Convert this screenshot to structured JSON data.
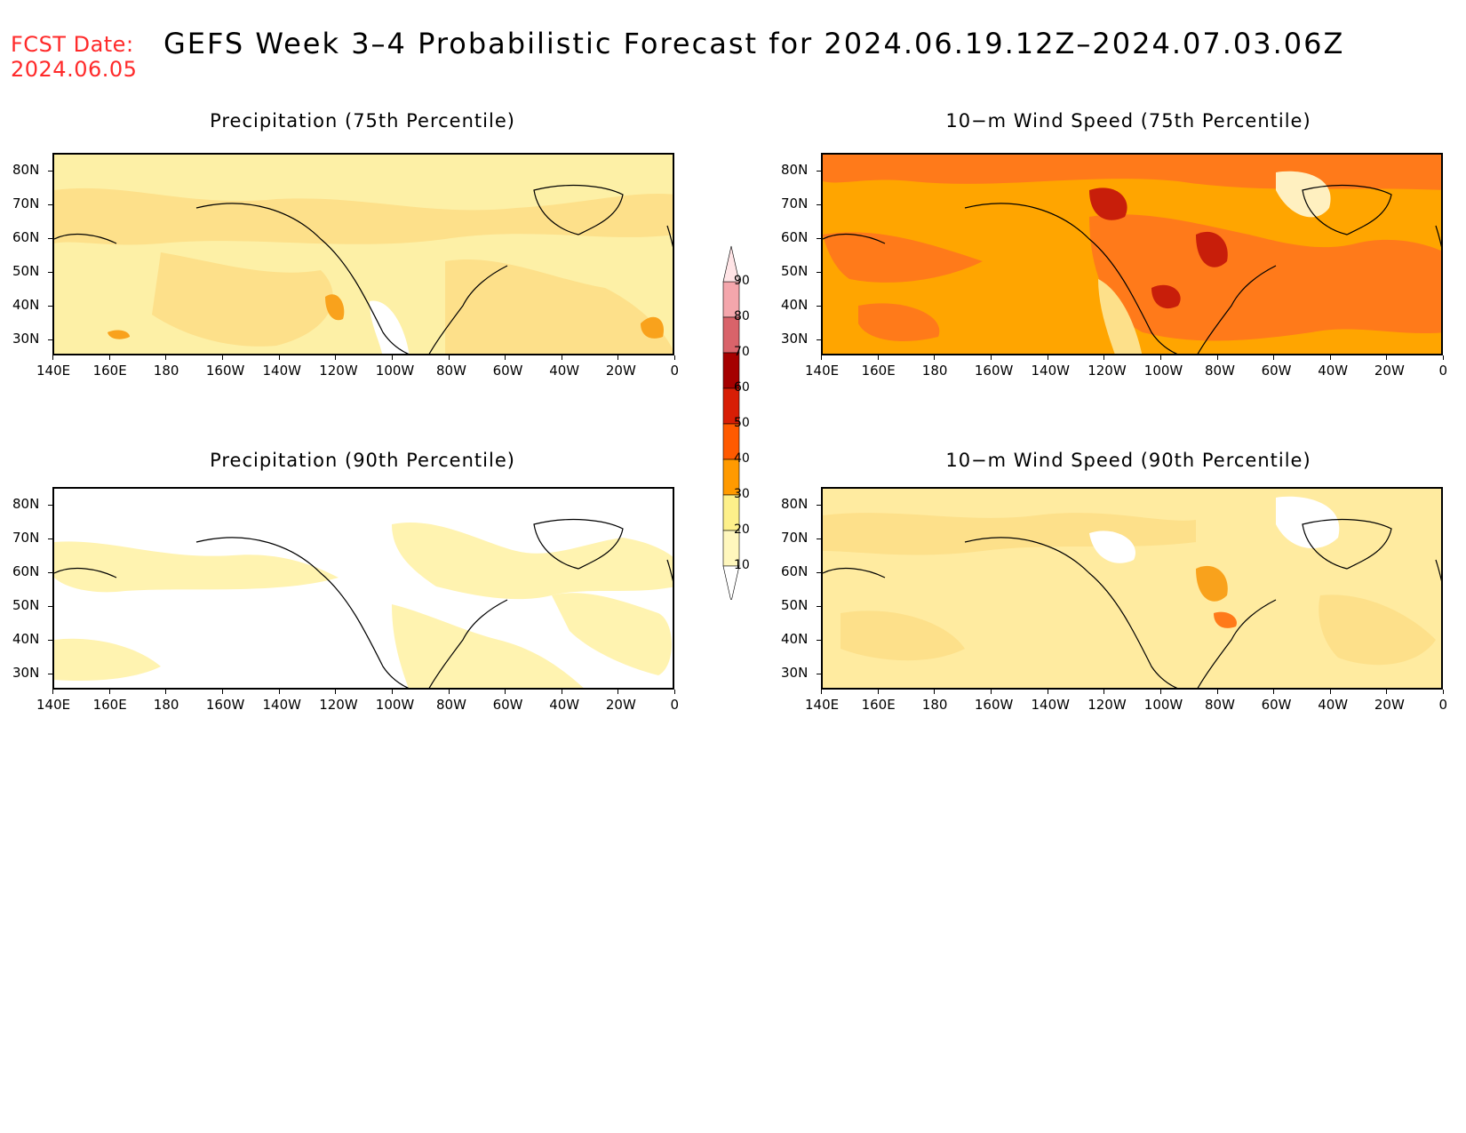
{
  "header": {
    "fcst_label": "FCST Date:",
    "fcst_date": "2024.06.05",
    "title": "GEFS Week 3–4 Probabilistic Forecast for 2024.06.19.12Z–2024.07.03.06Z"
  },
  "panels": [
    {
      "id": "precip-75",
      "title": "Precipitation (75th Percentile)",
      "base_color": "#fdf0a6",
      "shading": "moderate"
    },
    {
      "id": "wind-75",
      "title": "10−m Wind Speed (75th Percentile)",
      "base_color": "#ffa500",
      "shading": "high"
    },
    {
      "id": "precip-90",
      "title": "Precipitation (90th Percentile)",
      "base_color": "#ffffff",
      "shading": "low"
    },
    {
      "id": "wind-90",
      "title": "10−m Wind Speed (90th Percentile)",
      "base_color": "#ffeba0",
      "shading": "moderate"
    }
  ],
  "axes": {
    "lat_labels": [
      "80N",
      "70N",
      "60N",
      "50N",
      "40N",
      "30N"
    ],
    "lon_labels": [
      "140E",
      "160E",
      "180",
      "160W",
      "140W",
      "120W",
      "100W",
      "80W",
      "60W",
      "40W",
      "20W",
      "0"
    ]
  },
  "colorbar": {
    "levels": [
      "90",
      "80",
      "70",
      "60",
      "50",
      "40",
      "30",
      "20",
      "10"
    ],
    "colors": [
      "#f4a6ac",
      "#d9636a",
      "#a50000",
      "#d81e05",
      "#ff5a00",
      "#ff9a00",
      "#fdf08a",
      "#fff7bd"
    ]
  }
}
